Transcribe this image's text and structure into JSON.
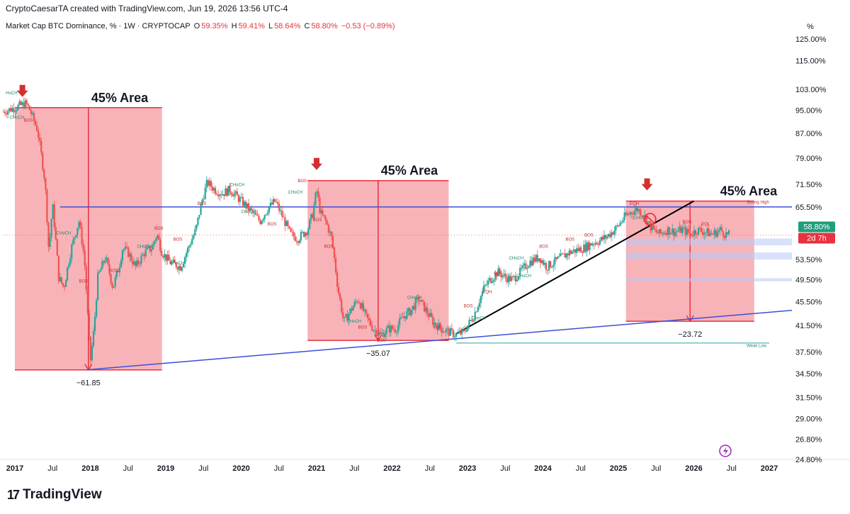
{
  "header": {
    "credit": "CryptoCaesarTA created with TradingView.com, Jun 19, 2026 13:56 UTC-4",
    "symbol": "Market Cap BTC Dominance, % · 1W · CRYPTOCAP",
    "o_label": "O",
    "o_value": "59.35%",
    "h_label": "H",
    "h_value": "59.41%",
    "l_label": "L",
    "l_value": "58.64%",
    "c_label": "C",
    "c_value": "58.80%",
    "change": "−0.53 (−0.89%)",
    "unit": "%"
  },
  "branding": {
    "name": "TradingView",
    "mark": "17"
  },
  "colors": {
    "candle_up": "#26a69a",
    "candle_down": "#ef5350",
    "zone_fill": "#f7a6ad",
    "zone_stroke": "#e8323f",
    "trend_blue": "#3b4fd8",
    "trend_black": "#000000",
    "price_badge": "#1e9e7a",
    "countdown_badge": "#e8323f"
  },
  "chart_data": {
    "type": "candlestick",
    "title": "",
    "ylabel": "",
    "y_scale": "log",
    "ylim": [
      24.8,
      125
    ],
    "y_ticks": [
      "125.00%",
      "115.00%",
      "103.00%",
      "95.00%",
      "87.00%",
      "79.00%",
      "71.50%",
      "65.50%",
      "53.50%",
      "49.50%",
      "45.50%",
      "41.50%",
      "37.50%",
      "34.50%",
      "31.50%",
      "29.00%",
      "26.80%",
      "24.80%"
    ],
    "y_tick_values": [
      125,
      115,
      103,
      95,
      87,
      79,
      71.5,
      65.5,
      53.5,
      49.5,
      45.5,
      41.5,
      37.5,
      34.5,
      31.5,
      29,
      26.8,
      24.8
    ],
    "x_ticks": [
      "2017",
      "Jul",
      "2018",
      "Jul",
      "2019",
      "Jul",
      "2020",
      "Jul",
      "2021",
      "Jul",
      "2022",
      "Jul",
      "2023",
      "Jul",
      "2024",
      "Jul",
      "2025",
      "Jul",
      "2026",
      "Jul",
      "2027"
    ],
    "x_tick_dates": [
      2017.0,
      2017.5,
      2018.0,
      2018.5,
      2019.0,
      2019.5,
      2020.0,
      2020.5,
      2021.0,
      2021.5,
      2022.0,
      2022.5,
      2023.0,
      2023.5,
      2024.0,
      2024.5,
      2025.0,
      2025.5,
      2026.0,
      2026.5,
      2027.0
    ],
    "xlim": [
      2016.85,
      2027.3
    ],
    "path": [
      [
        2016.85,
        94.5
      ],
      [
        2017.0,
        96
      ],
      [
        2017.15,
        97.5
      ],
      [
        2017.2,
        95
      ],
      [
        2017.3,
        88
      ],
      [
        2017.4,
        72
      ],
      [
        2017.45,
        55
      ],
      [
        2017.5,
        66
      ],
      [
        2017.58,
        50
      ],
      [
        2017.65,
        48
      ],
      [
        2017.75,
        56
      ],
      [
        2017.85,
        62
      ],
      [
        2017.92,
        54
      ],
      [
        2017.97,
        42
      ],
      [
        2018.0,
        36
      ],
      [
        2018.05,
        41
      ],
      [
        2018.1,
        50
      ],
      [
        2018.2,
        54
      ],
      [
        2018.3,
        48
      ],
      [
        2018.38,
        52
      ],
      [
        2018.43,
        56
      ],
      [
        2018.5,
        55
      ],
      [
        2018.6,
        52
      ],
      [
        2018.72,
        55
      ],
      [
        2018.82,
        56
      ],
      [
        2018.88,
        59
      ],
      [
        2018.95,
        55
      ],
      [
        2019.05,
        53
      ],
      [
        2019.2,
        52
      ],
      [
        2019.3,
        56
      ],
      [
        2019.4,
        60
      ],
      [
        2019.48,
        67
      ],
      [
        2019.55,
        72
      ],
      [
        2019.65,
        70
      ],
      [
        2019.75,
        69
      ],
      [
        2019.85,
        70
      ],
      [
        2019.95,
        68
      ],
      [
        2020.05,
        66
      ],
      [
        2020.15,
        64
      ],
      [
        2020.25,
        62
      ],
      [
        2020.35,
        65
      ],
      [
        2020.45,
        67
      ],
      [
        2020.55,
        63
      ],
      [
        2020.65,
        59
      ],
      [
        2020.75,
        58
      ],
      [
        2020.88,
        60
      ],
      [
        2020.95,
        64
      ],
      [
        2021.0,
        70
      ],
      [
        2021.05,
        64
      ],
      [
        2021.12,
        62
      ],
      [
        2021.2,
        58
      ],
      [
        2021.28,
        48
      ],
      [
        2021.36,
        42
      ],
      [
        2021.45,
        44
      ],
      [
        2021.55,
        46
      ],
      [
        2021.65,
        43
      ],
      [
        2021.75,
        41
      ],
      [
        2021.85,
        40
      ],
      [
        2021.95,
        41
      ],
      [
        2022.05,
        41
      ],
      [
        2022.15,
        43
      ],
      [
        2022.25,
        44
      ],
      [
        2022.35,
        46
      ],
      [
        2022.45,
        44
      ],
      [
        2022.55,
        42
      ],
      [
        2022.65,
        41
      ],
      [
        2022.75,
        40.5
      ],
      [
        2022.85,
        40
      ],
      [
        2022.95,
        40.5
      ],
      [
        2023.0,
        41.5
      ],
      [
        2023.08,
        43
      ],
      [
        2023.15,
        45.5
      ],
      [
        2023.22,
        48
      ],
      [
        2023.3,
        49.5
      ],
      [
        2023.4,
        51
      ],
      [
        2023.5,
        50
      ],
      [
        2023.6,
        49.5
      ],
      [
        2023.7,
        51
      ],
      [
        2023.82,
        53
      ],
      [
        2023.95,
        54
      ],
      [
        2024.05,
        52
      ],
      [
        2024.15,
        53
      ],
      [
        2024.25,
        54
      ],
      [
        2024.35,
        55
      ],
      [
        2024.45,
        55.5
      ],
      [
        2024.55,
        56
      ],
      [
        2024.65,
        57
      ],
      [
        2024.75,
        57.5
      ],
      [
        2024.85,
        58.5
      ],
      [
        2024.95,
        60
      ],
      [
        2025.0,
        61
      ],
      [
        2025.08,
        63
      ],
      [
        2025.15,
        64
      ],
      [
        2025.25,
        65
      ],
      [
        2025.32,
        64
      ],
      [
        2025.38,
        62
      ],
      [
        2025.45,
        60
      ],
      [
        2025.55,
        59
      ],
      [
        2025.65,
        60
      ],
      [
        2025.75,
        59.5
      ],
      [
        2025.85,
        60
      ],
      [
        2025.95,
        59
      ],
      [
        2026.05,
        60
      ],
      [
        2026.15,
        59.5
      ],
      [
        2026.25,
        59
      ],
      [
        2026.35,
        60
      ],
      [
        2026.42,
        59
      ],
      [
        2026.47,
        58.8
      ]
    ],
    "last_price_label": "58.80%",
    "countdown_label": "2d 7h",
    "zones": [
      {
        "label": "45% Area",
        "x0": 2017.0,
        "x1": 2018.95,
        "y_top": 96,
        "y_bottom": 35,
        "drop_label": "−61.85",
        "arrow_x": 2017.1
      },
      {
        "label": "45% Area",
        "x0": 2020.88,
        "x1": 2022.75,
        "y_top": 72.5,
        "y_bottom": 39.2,
        "drop_label": "−35.07",
        "arrow_x": 2021.0
      },
      {
        "label": "45% Area",
        "x0": 2025.1,
        "x1": 2026.8,
        "y_top": 67,
        "y_bottom": 42.2,
        "drop_label": "−23.72",
        "arrow_x": 2025.38
      }
    ],
    "support_lines": [
      {
        "from": [
          2017.95,
          35
        ],
        "to": [
          2027.3,
          44
        ]
      },
      {
        "from": [
          2017.6,
          65.5
        ],
        "to": [
          2027.3,
          65.5
        ]
      }
    ],
    "black_trend": {
      "from": [
        2022.85,
        40.2
      ],
      "to": [
        2026.0,
        67
      ]
    },
    "annotations": [
      "HoCH",
      "CHoCH",
      "BOS",
      "CHoCH",
      "BOS",
      "BOS",
      "CHoCH",
      "BOS",
      "CHoCH",
      "BOS",
      "BOS",
      "CHoCH",
      "CHoCH",
      "BOS",
      "CHoCH",
      "BOS",
      "BOS",
      "BOS",
      "CHoCH",
      "BOS",
      "BOS",
      "CHoCH",
      "BOS",
      "BOS",
      "CHoCH",
      "EQH",
      "BOS",
      "CHoCH",
      "CHoCH",
      "BOS",
      "BOS",
      "BOS",
      "EQH",
      "CHoCH",
      "BOS",
      "EQL"
    ],
    "strong_high_label": "Strong High",
    "weak_low_label": "Weak Low"
  }
}
